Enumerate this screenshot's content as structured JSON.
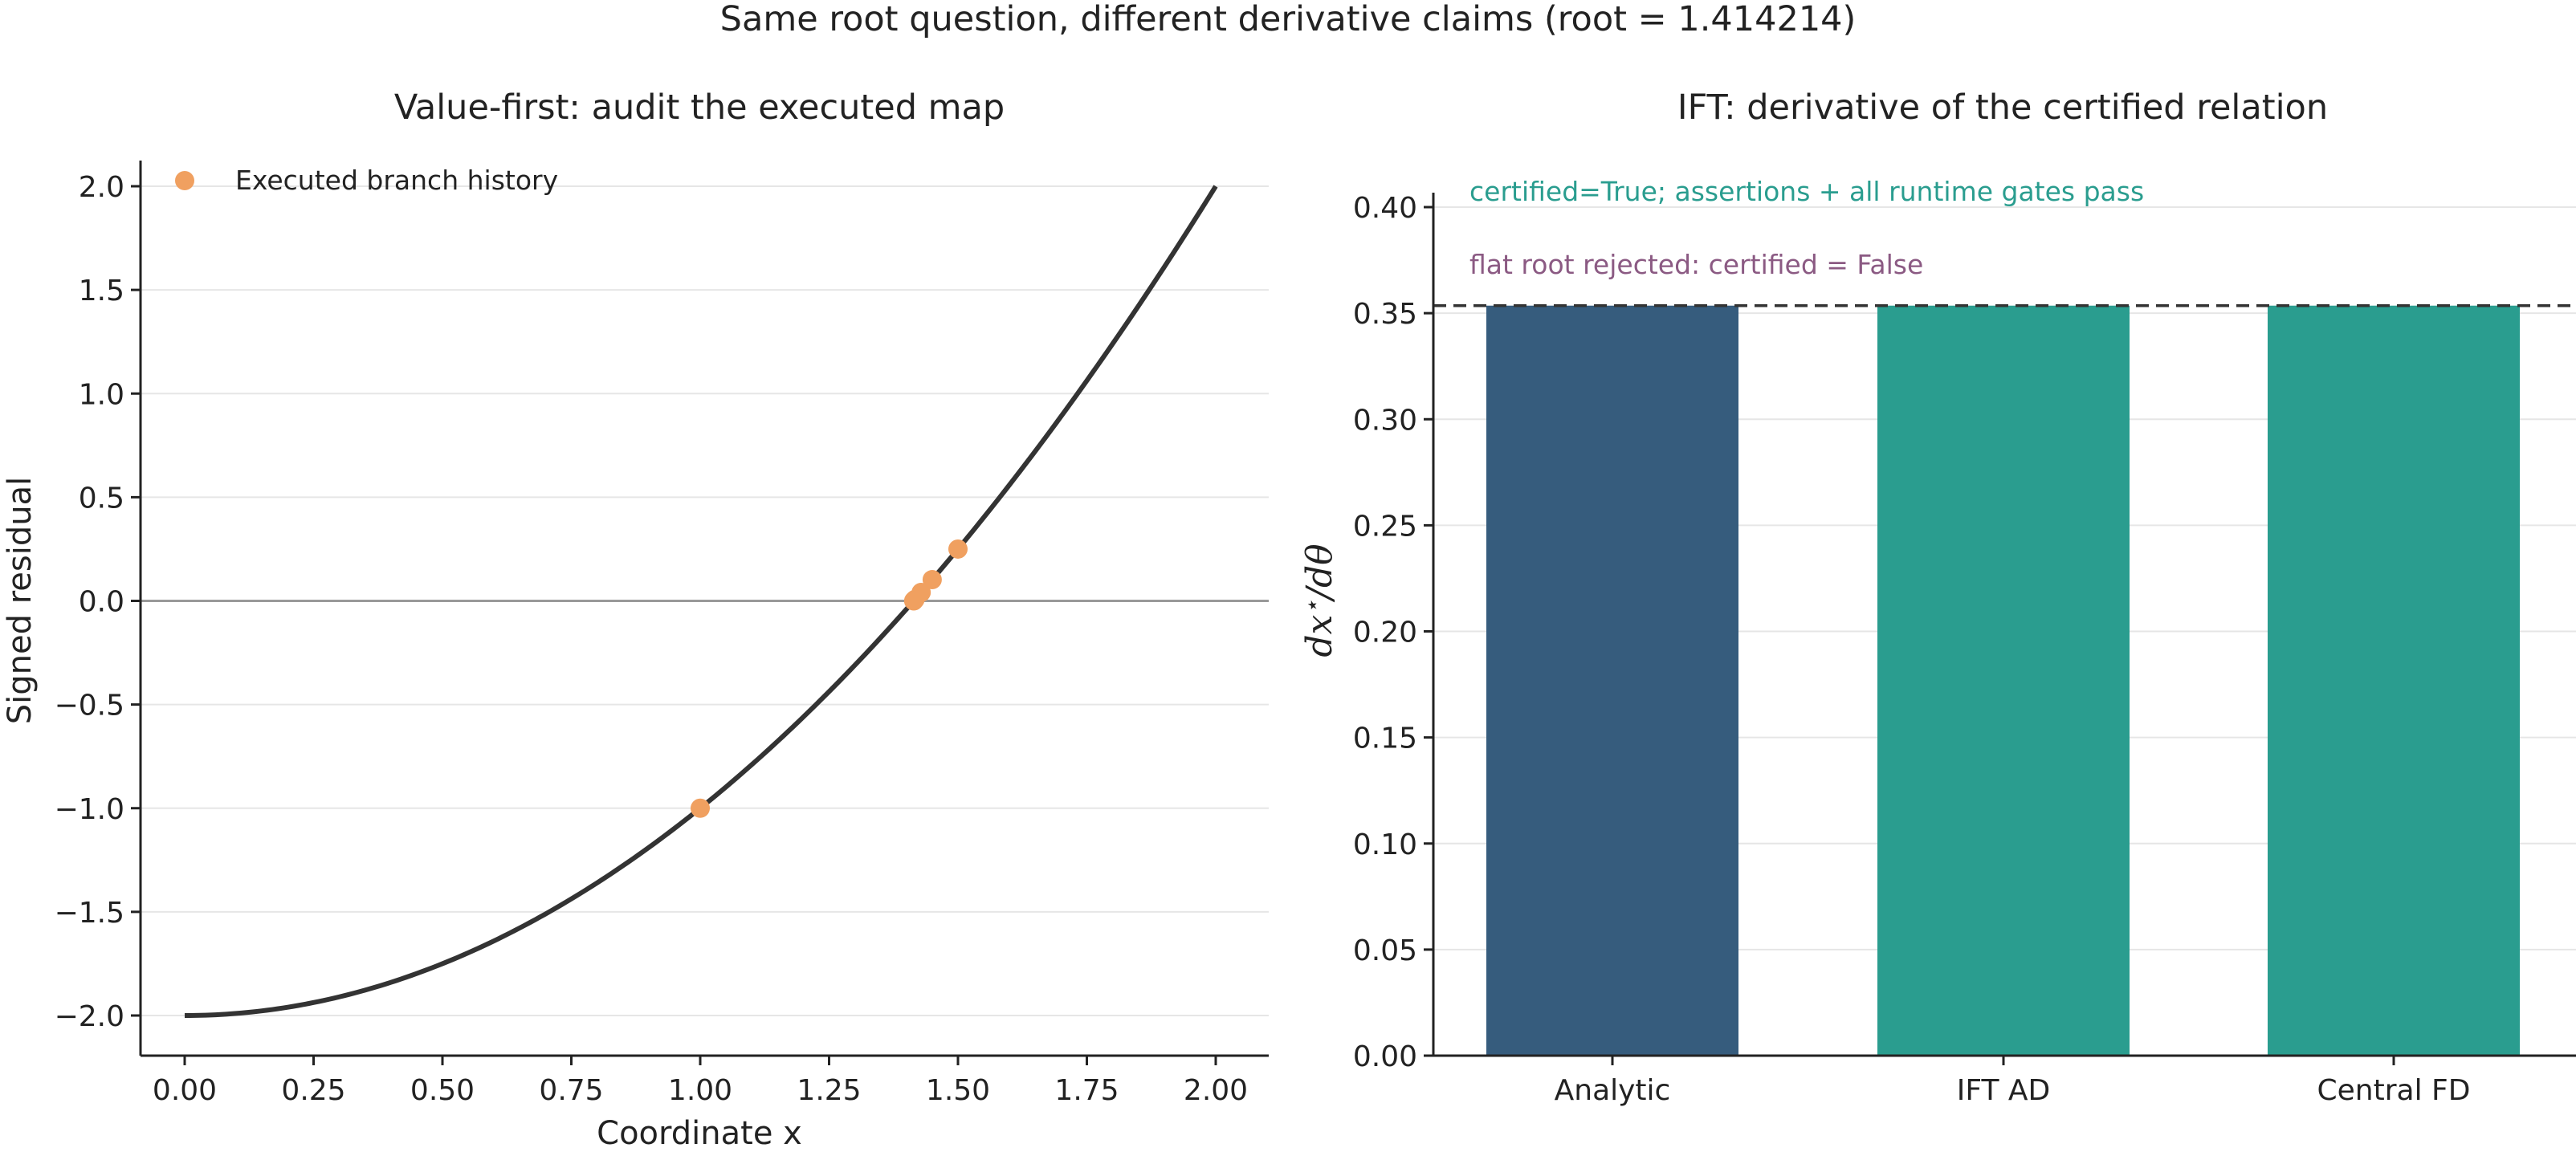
{
  "figure": {
    "title": "Same root question, different derivative claims (root = 1.414214)"
  },
  "chart_data": [
    {
      "type": "line",
      "title": "Value-first: audit the executed map",
      "xlabel": "Coordinate x",
      "ylabel": "Signed residual",
      "xlim": [
        0.0,
        2.0
      ],
      "ylim": [
        -2.2,
        2.1
      ],
      "xticks": [
        0.0,
        0.25,
        0.5,
        0.75,
        1.0,
        1.25,
        1.5,
        1.75,
        2.0
      ],
      "xtick_labels": [
        "0.00",
        "0.25",
        "0.50",
        "0.75",
        "1.00",
        "1.25",
        "1.50",
        "1.75",
        "2.00"
      ],
      "yticks": [
        2.0,
        1.5,
        1.0,
        0.5,
        0.0,
        -0.5,
        -1.0,
        -1.5,
        -2.0
      ],
      "ytick_labels": [
        "2.0",
        "1.5",
        "1.0",
        "0.5",
        "0.0",
        "−0.5",
        "−1.0",
        "−1.5",
        "−2.0"
      ],
      "grid": "horizontal",
      "zero_line": true,
      "curve": {
        "function": "x^2 - 2",
        "x": [
          0.0,
          0.1,
          0.2,
          0.3,
          0.4,
          0.5,
          0.6,
          0.7,
          0.8,
          0.9,
          1.0,
          1.1,
          1.2,
          1.3,
          1.4,
          1.5,
          1.6,
          1.7,
          1.8,
          1.9,
          2.0
        ],
        "y": [
          -2.0,
          -1.99,
          -1.96,
          -1.91,
          -1.84,
          -1.75,
          -1.64,
          -1.51,
          -1.36,
          -1.19,
          -1.0,
          -0.79,
          -0.56,
          -0.31,
          -0.04,
          0.25,
          0.56,
          0.89,
          1.24,
          1.61,
          2.0
        ],
        "color": "#333333"
      },
      "series": [
        {
          "name": "Executed branch history",
          "type": "scatter",
          "color": "#f0a060",
          "x": [
            1.0,
            1.5,
            1.45,
            1.4286,
            1.4167,
            1.4143,
            1.4142
          ],
          "y": [
            -1.0,
            0.25,
            0.1025,
            0.0408,
            0.0069,
            0.0003,
            0.0
          ]
        }
      ],
      "legend": "top-left"
    },
    {
      "type": "bar",
      "title": "IFT: derivative of the certified relation",
      "ylabel": "dx*/dθ",
      "ylabel_parts": {
        "base": "dx",
        "sup": "⋆",
        "tail": "/dθ"
      },
      "categories": [
        "Analytic",
        "IFT AD",
        "Central FD"
      ],
      "values": [
        0.353553,
        0.353553,
        0.353553
      ],
      "colors": [
        "#365c7d",
        "#2a9d8f",
        "#2a9d8f"
      ],
      "reference_line": 0.353553,
      "ylim": [
        0.0,
        0.405
      ],
      "yticks": [
        0.0,
        0.05,
        0.1,
        0.15,
        0.2,
        0.25,
        0.3,
        0.35,
        0.4
      ],
      "ytick_labels": [
        "0.00",
        "0.05",
        "0.10",
        "0.15",
        "0.20",
        "0.25",
        "0.30",
        "0.35",
        "0.40"
      ],
      "grid": "horizontal",
      "annotations": [
        {
          "text": "certified=True; assertions + all runtime gates pass",
          "color": "#2a9d8f"
        },
        {
          "text": "flat root rejected: certified = False",
          "color": "#8b5a83"
        }
      ]
    }
  ]
}
